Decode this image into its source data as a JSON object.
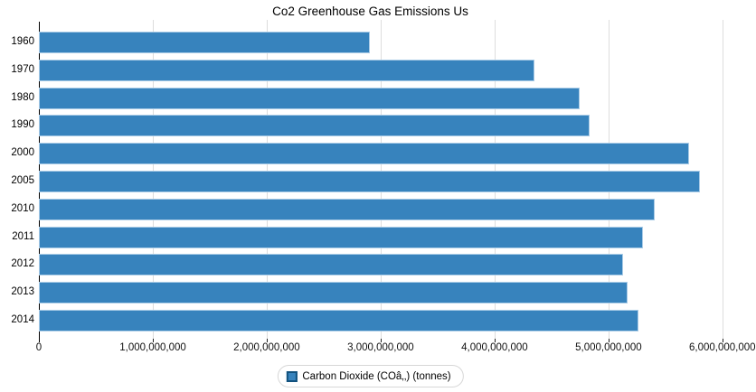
{
  "title": "Co2 Greenhouse Gas Emissions Us",
  "legend": {
    "label": "Carbon Dioxide (COâ‚‚) (tonnes)",
    "swatch_color": "#3783bd",
    "swatch_border": "#12527e"
  },
  "colors": {
    "bar_fill": "#3783bd",
    "bar_stroke": "#a9cbe6",
    "gridline": "#dddddd",
    "axis_line": "#000000",
    "tick": "#222222"
  },
  "chart_data": {
    "type": "bar",
    "orientation": "horizontal",
    "title": "Co2 Greenhouse Gas Emissions Us",
    "categories": [
      "1960",
      "1970",
      "1980",
      "1990",
      "2000",
      "2005",
      "2010",
      "2011",
      "2012",
      "2013",
      "2014"
    ],
    "series": [
      {
        "name": "Carbon Dioxide (COâ‚‚) (tonnes)",
        "values": [
          2890000000,
          4330000000,
          4730000000,
          4820000000,
          5690000000,
          5790000000,
          5390000000,
          5290000000,
          5110000000,
          5150000000,
          5250000000
        ]
      }
    ],
    "x_ticks": {
      "labels": [
        "0",
        "1,000,000,000",
        "2,000,000,000",
        "3,000,000,000",
        "4,000,000,000",
        "5,000,000,000",
        "6,000,000,000"
      ],
      "values": [
        0,
        1000000000,
        2000000000,
        3000000000,
        4000000000,
        5000000000,
        6000000000
      ]
    },
    "xlim": [
      0,
      6160000000
    ],
    "ylim_categories": [
      "1960",
      "2014"
    ],
    "grid": "vertical",
    "legend_position": "bottom-center"
  }
}
